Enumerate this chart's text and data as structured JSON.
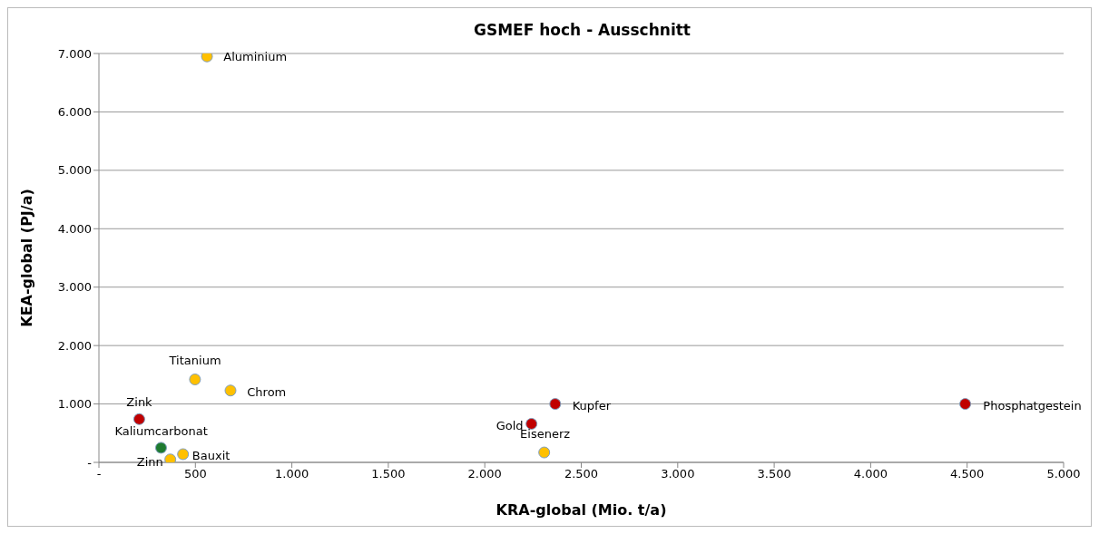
{
  "chart_data": {
    "type": "scatter",
    "title": "GSMEF hoch - Ausschnitt",
    "xlabel": "KRA-global (Mio. t/a)",
    "ylabel": "KEA-global (PJ/a)",
    "x": [
      560,
      498,
      682,
      209,
      322,
      370,
      436,
      2242,
      2308,
      2365,
      4490
    ],
    "values": [
      6950,
      1420,
      1230,
      740,
      250,
      50,
      140,
      660,
      170,
      1000,
      1000
    ],
    "colors": [
      "#ffc000",
      "#ffc000",
      "#ffc000",
      "#c00000",
      "#1e7b30",
      "#ffc000",
      "#ffc000",
      "#c00000",
      "#ffc000",
      "#c00000",
      "#c00000"
    ],
    "annotations": [
      {
        "text": "Aluminium",
        "x": 560,
        "y": 6950
      },
      {
        "text": "Titanium",
        "x": 498,
        "y": 1420
      },
      {
        "text": "Chrom",
        "x": 682,
        "y": 1230
      },
      {
        "text": "Zink",
        "x": 209,
        "y": 740
      },
      {
        "text": "Kaliumcarbonat",
        "x": 322,
        "y": 250
      },
      {
        "text": "Zinn",
        "x": 370,
        "y": 50
      },
      {
        "text": "Bauxit",
        "x": 436,
        "y": 140
      },
      {
        "text": "Gold",
        "x": 2242,
        "y": 660
      },
      {
        "text": "Eisenerz",
        "x": 2308,
        "y": 170
      },
      {
        "text": "Kupfer",
        "x": 2365,
        "y": 1000
      },
      {
        "text": "Phosphatgestein",
        "x": 4490,
        "y": 1000
      }
    ],
    "xlim": [
      0,
      5000
    ],
    "xticks": [
      {
        "value": 0,
        "label": "-"
      },
      500,
      {
        "value": 1000,
        "label": "1.000"
      },
      {
        "value": 1500,
        "label": "1.500"
      },
      {
        "value": 2000,
        "label": "2.000"
      },
      {
        "value": 2500,
        "label": "2.500"
      },
      {
        "value": 3000,
        "label": "3.000"
      },
      {
        "value": 3500,
        "label": "3.500"
      },
      {
        "value": 4000,
        "label": "4.000"
      },
      {
        "value": 4500,
        "label": "4.500"
      },
      {
        "value": 5000,
        "label": "5.000"
      }
    ],
    "ylim": [
      0,
      7000
    ],
    "yticks": [
      {
        "value": 0,
        "label": "-"
      },
      {
        "value": 1000,
        "label": "1.000"
      },
      {
        "value": 2000,
        "label": "2.000"
      },
      {
        "value": 3000,
        "label": "3.000"
      },
      {
        "value": 4000,
        "label": "4.000"
      },
      {
        "value": 5000,
        "label": "5.000"
      },
      {
        "value": 6000,
        "label": "6.000"
      },
      {
        "value": 7000,
        "label": "7.000"
      }
    ],
    "grid": "y",
    "marker": "circle",
    "legend": false
  }
}
